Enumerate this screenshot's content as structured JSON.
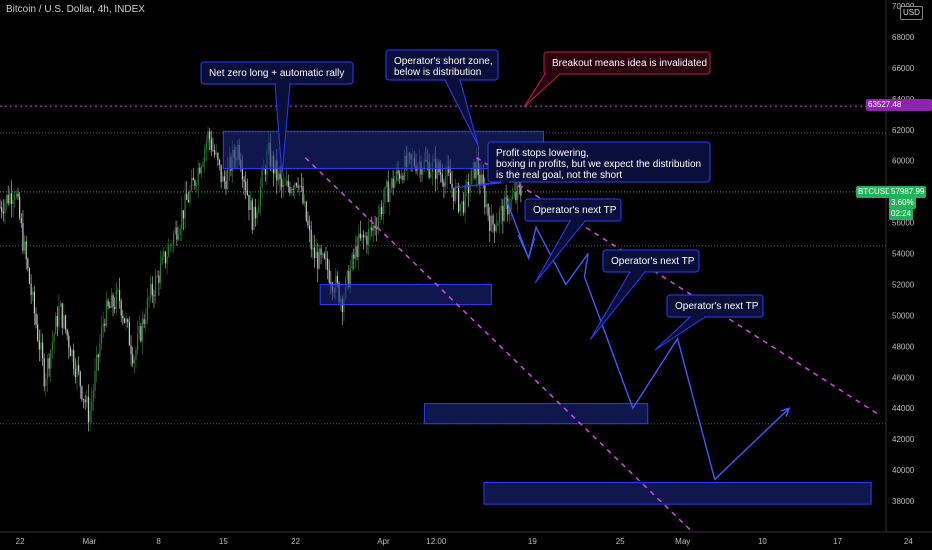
{
  "header": {
    "symbol_line": "Bitcoin / U.S. Dollar, 4h, INDEX"
  },
  "currency_badge": "USD",
  "price_badges": {
    "symbol": "BTCUSD",
    "price": "57987.99",
    "change": "3.60%",
    "countdown": "02:24",
    "level_label": "63527.48"
  },
  "colors": {
    "bg": "#000000",
    "box_fill": "#1e2a8c",
    "box_stroke": "#2c3cff",
    "arrow": "#3a5cff",
    "magenta": "#d946ef",
    "hline": "#3a3a3a",
    "green": "#22b35a",
    "up_candle": "#2e7d32",
    "down_candle": "#c8c8c8",
    "callout_fill": "#0a0f3a",
    "callout_stroke": "#2c3cff",
    "red_callout_fill": "#2a0010",
    "red_callout_stroke": "#c0223b"
  },
  "chart_data": {
    "type": "candlestick",
    "title": "Bitcoin / U.S. Dollar, 4h, INDEX",
    "ylim": [
      36000,
      70000
    ],
    "y_ticks": [
      38000,
      40000,
      42000,
      44000,
      46000,
      48000,
      50000,
      52000,
      54000,
      56000,
      58000,
      60000,
      62000,
      64000,
      66000,
      68000,
      70000
    ],
    "x_ticks": [
      "22",
      "Mar",
      "8",
      "15",
      "22",
      "Apr",
      "12:00",
      "19",
      "25",
      "May",
      "10",
      "17",
      "24"
    ],
    "last_price": 57987.99,
    "last_change_pct": 3.6,
    "invalidation_level": 63527.48,
    "horizontal_levels": [
      61800,
      54500,
      43000
    ],
    "price_path": [
      [
        0,
        57000
      ],
      [
        2,
        58200
      ],
      [
        4,
        52000
      ],
      [
        6,
        46000
      ],
      [
        8,
        50500
      ],
      [
        10,
        47000
      ],
      [
        12,
        43500
      ],
      [
        14,
        50000
      ],
      [
        16,
        51200
      ],
      [
        18,
        47300
      ],
      [
        20,
        51000
      ],
      [
        22,
        53500
      ],
      [
        24,
        56000
      ],
      [
        26,
        58500
      ],
      [
        28,
        61700
      ],
      [
        30,
        58500
      ],
      [
        32,
        61000
      ],
      [
        34,
        56000
      ],
      [
        36,
        60500
      ],
      [
        38,
        58000
      ],
      [
        40,
        59000
      ],
      [
        42,
        54000
      ],
      [
        44,
        53000
      ],
      [
        46,
        51000
      ],
      [
        48,
        54500
      ],
      [
        50,
        55500
      ],
      [
        52,
        58000
      ],
      [
        54,
        59500
      ],
      [
        56,
        60000
      ],
      [
        58,
        59600
      ],
      [
        60,
        59000
      ],
      [
        62,
        57000
      ],
      [
        64,
        59800
      ],
      [
        66,
        55800
      ],
      [
        68,
        57000
      ],
      [
        70,
        57988
      ]
    ],
    "zones": [
      {
        "name": "operator-short-zone",
        "x_from": 30,
        "x_to": 73,
        "y_from": 59500,
        "y_to": 61900
      },
      {
        "name": "distribution-box-1",
        "x_from": 43,
        "x_to": 66,
        "y_from": 50700,
        "y_to": 52000
      },
      {
        "name": "tp-box-2",
        "x_from": 57,
        "x_to": 87,
        "y_from": 43000,
        "y_to": 44300
      },
      {
        "name": "tp-box-3",
        "x_from": 65,
        "x_to": 117,
        "y_from": 37800,
        "y_to": 39200
      }
    ],
    "projection_path": [
      [
        68,
        57500
      ],
      [
        71,
        53700
      ],
      [
        72,
        55700
      ],
      [
        76,
        52000
      ],
      [
        79,
        54000
      ],
      [
        78.5,
        52500
      ],
      [
        85,
        44000
      ],
      [
        91,
        48500
      ],
      [
        96,
        39400
      ],
      [
        106,
        44000
      ]
    ],
    "channel_lines": [
      {
        "from": [
          64,
          60200
        ],
        "to": [
          118,
          43600
        ]
      },
      {
        "from": [
          41,
          60200
        ],
        "to": [
          93,
          36000
        ]
      }
    ],
    "annotations": [
      {
        "text": [
          "Net zero long + automatic rally"
        ],
        "style": "blue"
      },
      {
        "text": [
          "Operator's short zone,",
          "below is distribution"
        ],
        "style": "blue"
      },
      {
        "text": [
          "Breakout means idea is invalidated"
        ],
        "style": "red"
      },
      {
        "text": [
          "Profit stops lowering,",
          "boxing in profits, but we expect the distribution",
          "is the real goal, not the short"
        ],
        "style": "blue"
      },
      {
        "text": [
          "Operator's next TP"
        ],
        "style": "blue"
      },
      {
        "text": [
          "Operator's next TP"
        ],
        "style": "blue"
      },
      {
        "text": [
          "Operator's next TP"
        ],
        "style": "blue"
      }
    ]
  }
}
